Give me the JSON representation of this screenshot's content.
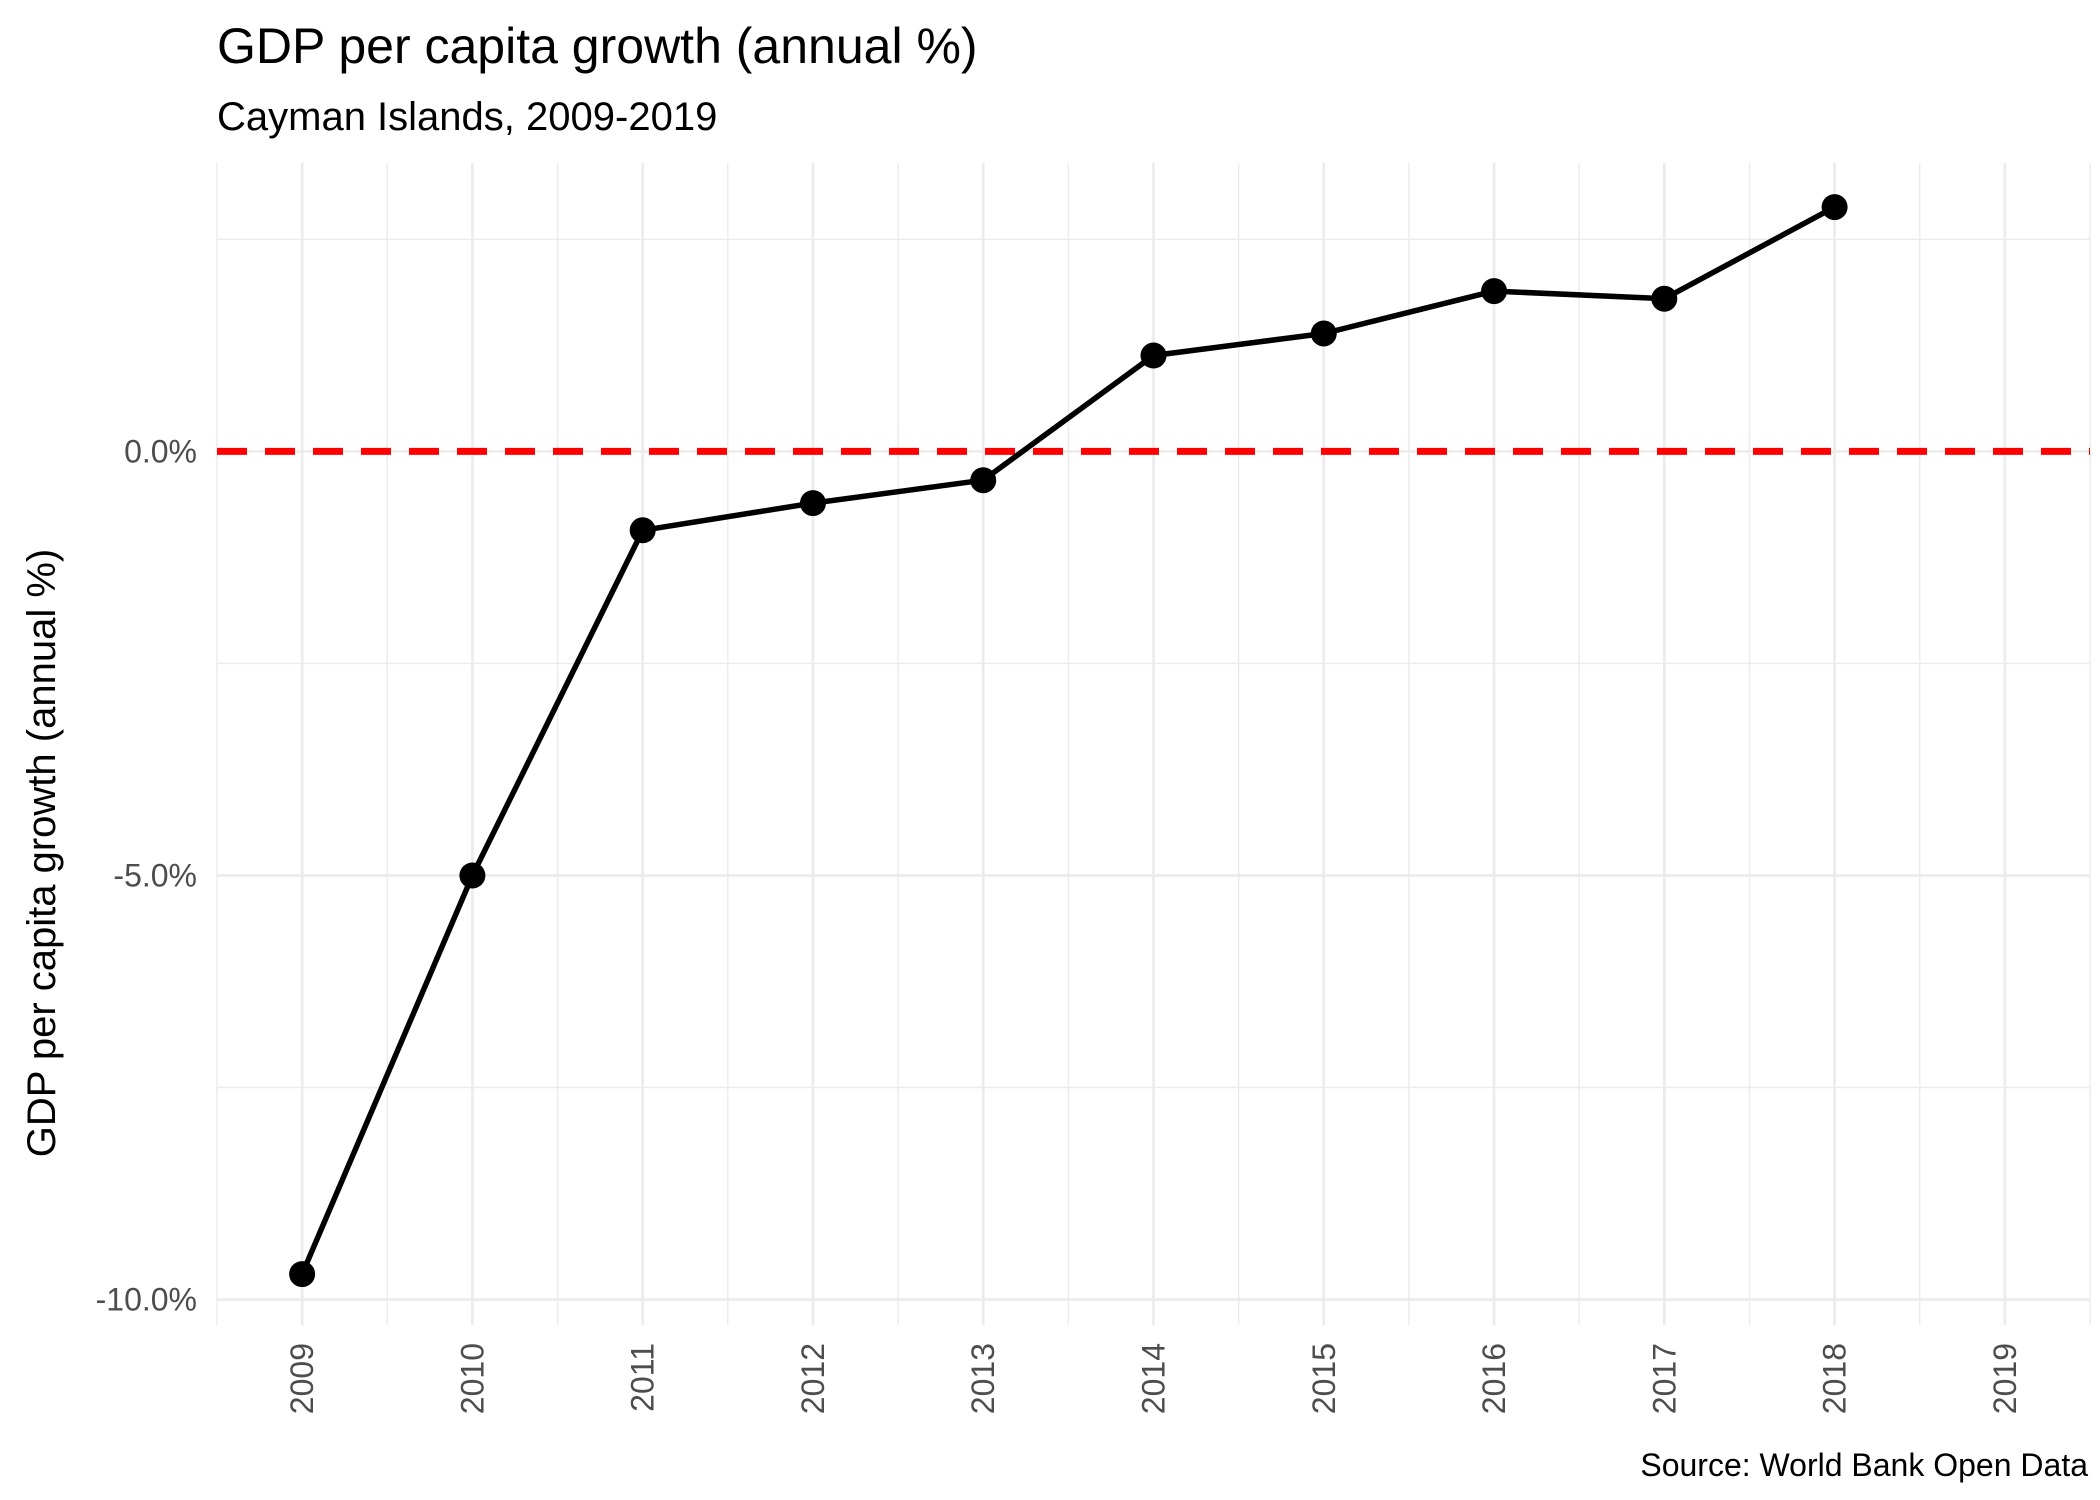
{
  "chart_data": {
    "type": "line",
    "title": "GDP per capita growth (annual %)",
    "subtitle": "Cayman Islands, 2009-2019",
    "caption": "Source: World Bank Open Data",
    "xlabel": "",
    "ylabel": "GDP per capita growth (annual %)",
    "x_ticks": [
      "2009",
      "2010",
      "2011",
      "2012",
      "2013",
      "2014",
      "2015",
      "2016",
      "2017",
      "2018",
      "2019"
    ],
    "y_ticks": [
      {
        "value": 0,
        "label": "0.0%"
      },
      {
        "value": -5,
        "label": "-5.0%"
      },
      {
        "value": -10,
        "label": "-10.0%"
      }
    ],
    "xlim": [
      2008.5,
      2019.5
    ],
    "ylim": [
      -10.3,
      3.4
    ],
    "grid": true,
    "series": [
      {
        "x": [
          2009,
          2010,
          2011,
          2012,
          2013,
          2014,
          2015,
          2016,
          2017,
          2018
        ],
        "values": [
          -9.7,
          -5.0,
          -0.93,
          -0.61,
          -0.34,
          1.13,
          1.39,
          1.89,
          1.8,
          2.88
        ],
        "color": "#000000"
      }
    ],
    "reference_line": {
      "value": 0,
      "color": "#ff0000",
      "style": "dashed"
    }
  }
}
